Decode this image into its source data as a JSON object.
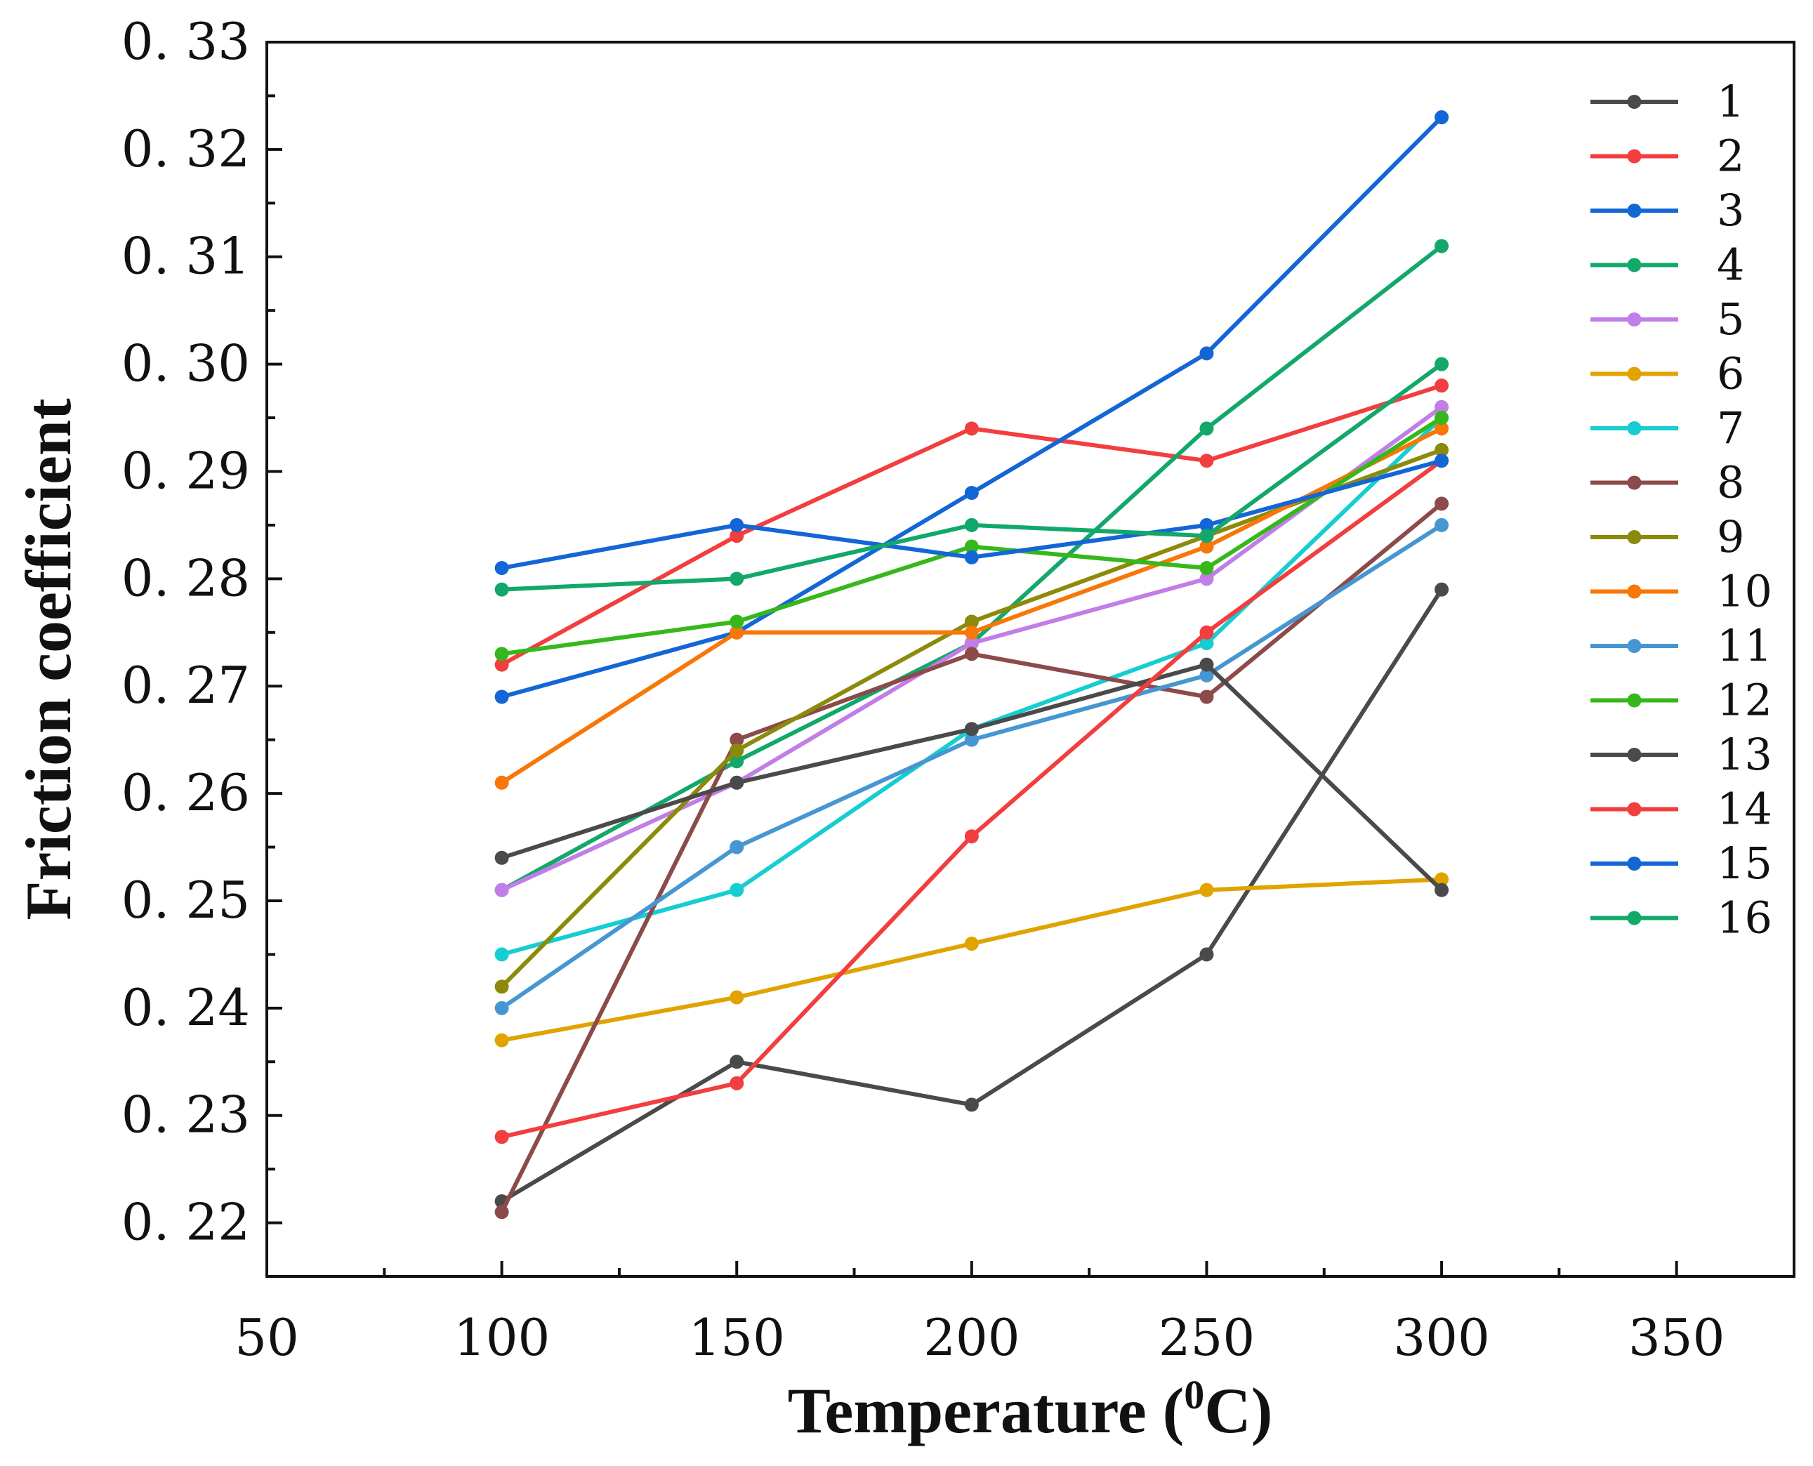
{
  "chart_data": {
    "type": "line",
    "title": "",
    "xlabel": "Temperature",
    "xlabel_unit_prefix": " (",
    "xlabel_unit_sup": "0",
    "xlabel_unit_suffix": "C)",
    "ylabel": "Friction coefficient",
    "xlim": [
      50,
      375
    ],
    "ylim": [
      0.215,
      0.33
    ],
    "x_ticks": [
      50,
      100,
      150,
      200,
      250,
      300,
      350
    ],
    "x_tick_labels": [
      "50",
      "100",
      "150",
      "200",
      "250",
      "300",
      "350"
    ],
    "y_ticks": [
      0.22,
      0.23,
      0.24,
      0.25,
      0.26,
      0.27,
      0.28,
      0.29,
      0.3,
      0.31,
      0.32,
      0.33
    ],
    "y_tick_labels": [
      "0. 22",
      "0. 23",
      "0. 24",
      "0. 25",
      "0. 26",
      "0. 27",
      "0. 28",
      "0. 29",
      "0. 30",
      "0. 31",
      "0. 32",
      "0. 33"
    ],
    "grid": false,
    "legend_position": "top-right",
    "x": [
      100,
      150,
      200,
      250,
      300
    ],
    "series": [
      {
        "name": "1",
        "color": "#4a4a4a",
        "values": [
          0.222,
          0.235,
          0.231,
          0.245,
          0.279
        ]
      },
      {
        "name": "2",
        "color": "#f23e3e",
        "values": [
          0.272,
          0.284,
          0.294,
          0.291,
          0.298
        ]
      },
      {
        "name": "3",
        "color": "#1366d6",
        "values": [
          0.269,
          0.275,
          0.288,
          0.301,
          0.323
        ]
      },
      {
        "name": "4",
        "color": "#12a86a",
        "values": [
          0.251,
          0.263,
          0.274,
          0.294,
          0.311
        ]
      },
      {
        "name": "5",
        "color": "#c07ee6",
        "values": [
          0.251,
          0.261,
          0.274,
          0.28,
          0.296
        ]
      },
      {
        "name": "6",
        "color": "#e0a300",
        "values": [
          0.237,
          0.241,
          0.246,
          0.251,
          0.252
        ]
      },
      {
        "name": "7",
        "color": "#16cdd1",
        "values": [
          0.245,
          0.251,
          0.266,
          0.274,
          0.295
        ]
      },
      {
        "name": "8",
        "color": "#8c4a4a",
        "values": [
          0.221,
          0.265,
          0.273,
          0.269,
          0.287
        ]
      },
      {
        "name": "9",
        "color": "#8c8a0a",
        "values": [
          0.242,
          0.264,
          0.276,
          0.284,
          0.292
        ]
      },
      {
        "name": "10",
        "color": "#f77708",
        "values": [
          0.261,
          0.275,
          0.275,
          0.283,
          0.294
        ]
      },
      {
        "name": "11",
        "color": "#4696d2",
        "values": [
          0.24,
          0.255,
          0.265,
          0.271,
          0.285
        ]
      },
      {
        "name": "12",
        "color": "#36b81c",
        "values": [
          0.273,
          0.276,
          0.283,
          0.281,
          0.295
        ]
      },
      {
        "name": "13",
        "color": "#4a4a4a",
        "values": [
          0.254,
          0.261,
          0.266,
          0.272,
          0.251
        ]
      },
      {
        "name": "14",
        "color": "#f23e3e",
        "values": [
          0.228,
          0.233,
          0.256,
          0.275,
          0.291
        ]
      },
      {
        "name": "15",
        "color": "#1366d6",
        "values": [
          0.281,
          0.285,
          0.282,
          0.285,
          0.291
        ]
      },
      {
        "name": "16",
        "color": "#12a86a",
        "values": [
          0.279,
          0.28,
          0.285,
          0.284,
          0.3
        ]
      }
    ]
  }
}
